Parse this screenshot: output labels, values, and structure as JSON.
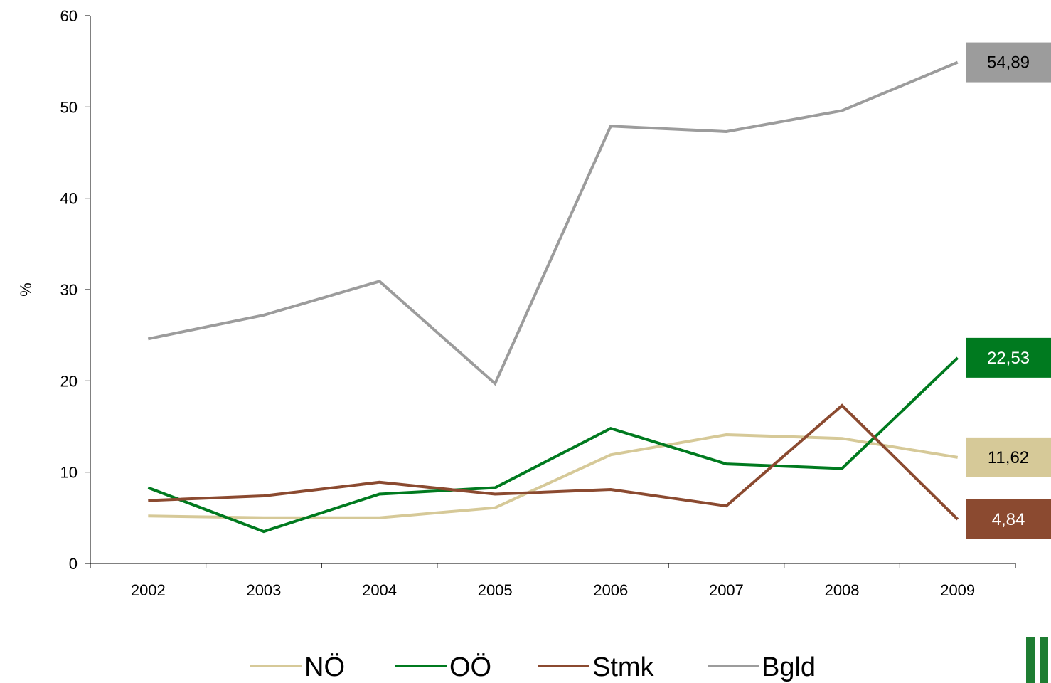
{
  "chart_data": {
    "type": "line",
    "title": "",
    "xlabel": "",
    "ylabel": "%",
    "ylim": [
      0,
      60
    ],
    "yticks": [
      0,
      10,
      20,
      30,
      40,
      50,
      60
    ],
    "categories": [
      "2002",
      "2003",
      "2004",
      "2005",
      "2006",
      "2007",
      "2008",
      "2009"
    ],
    "series": [
      {
        "name": "NÖ",
        "color": "#d6c998",
        "values": [
          5.2,
          5.0,
          5.0,
          6.1,
          11.9,
          14.1,
          13.7,
          11.62
        ],
        "end_label": "11,62",
        "end_label_text_color": "#000000"
      },
      {
        "name": "OÖ",
        "color": "#007a1f",
        "values": [
          8.3,
          3.5,
          7.6,
          8.3,
          14.8,
          10.9,
          10.4,
          22.53
        ],
        "end_label": "22,53",
        "end_label_text_color": "#ffffff"
      },
      {
        "name": "Stmk",
        "color": "#8b4a30",
        "values": [
          6.9,
          7.4,
          8.9,
          7.6,
          8.1,
          6.3,
          17.3,
          4.84
        ],
        "end_label": "4,84",
        "end_label_text_color": "#ffffff"
      },
      {
        "name": "Bgld",
        "color": "#9c9c9c",
        "values": [
          24.6,
          27.2,
          30.9,
          19.7,
          47.9,
          47.3,
          49.6,
          54.89
        ],
        "end_label": "54,89",
        "end_label_text_color": "#000000"
      }
    ],
    "grid": false,
    "legend_position": "bottom"
  },
  "logo": {
    "color": "#1e7d32"
  }
}
